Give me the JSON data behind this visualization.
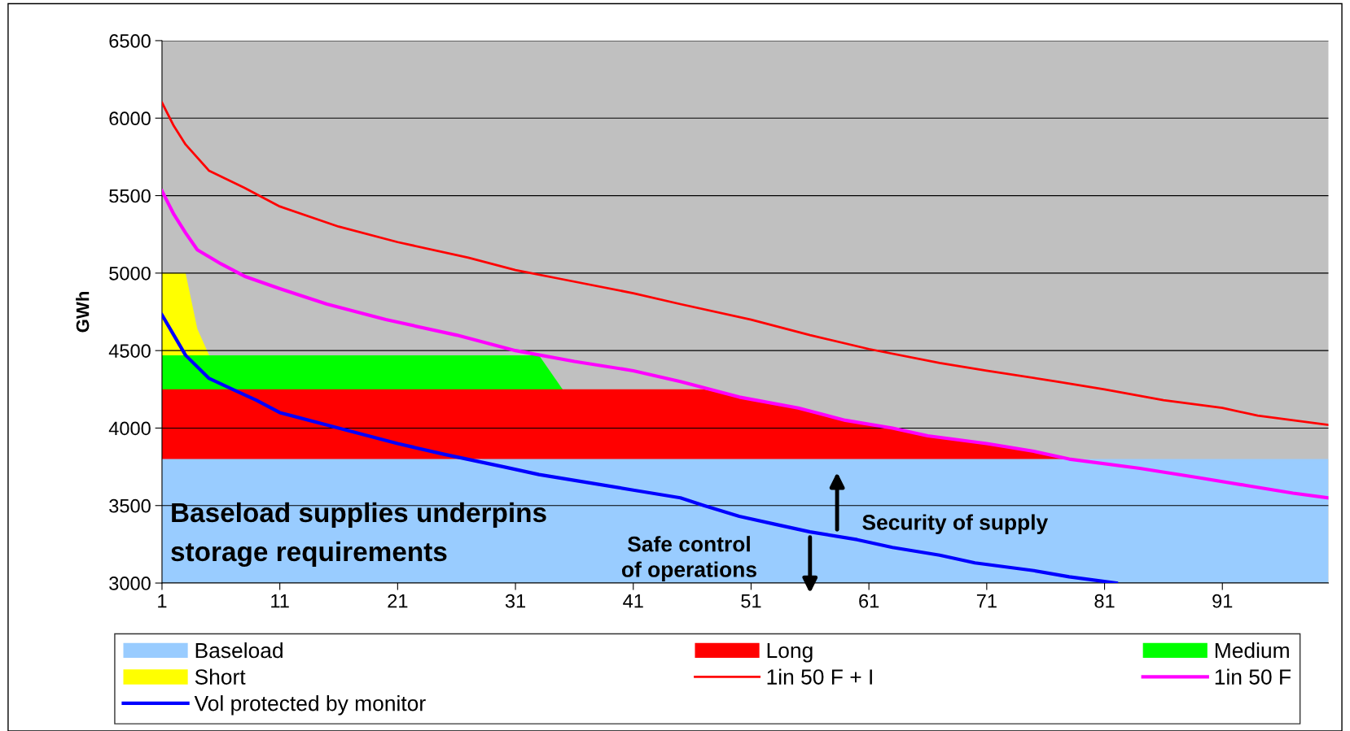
{
  "chart_data": {
    "type": "area",
    "ylabel": "GWh",
    "series": [
      {
        "name": "Baseload",
        "color": "#99ccff",
        "x": [
          1,
          100
        ],
        "values": [
          3800,
          3800
        ]
      },
      {
        "name": "Long",
        "color": "#ff0000",
        "x": [
          1,
          47,
          50,
          55,
          59,
          63,
          66,
          71,
          75,
          78
        ],
        "values": [
          4250,
          4250,
          4200,
          4130,
          4050,
          4000,
          3950,
          3900,
          3850,
          3800
        ]
      },
      {
        "name": "Medium",
        "color": "#00ff00",
        "x": [
          1,
          33,
          35
        ],
        "values": [
          4470,
          4470,
          4250
        ]
      },
      {
        "name": "Short",
        "color": "#ffff00",
        "x": [
          1,
          3,
          4,
          5
        ],
        "values": [
          5000,
          5000,
          4640,
          4470
        ]
      },
      {
        "name": "1in 50 F + I",
        "type": "line",
        "color": "#ff0000",
        "x": [
          1,
          2,
          3,
          5,
          8,
          11,
          16,
          21,
          27,
          31,
          35,
          41,
          45,
          51,
          56,
          61,
          67,
          71,
          77,
          81,
          86,
          91,
          94,
          100
        ],
        "values": [
          6100,
          5950,
          5830,
          5660,
          5550,
          5430,
          5300,
          5200,
          5100,
          5020,
          4960,
          4870,
          4800,
          4700,
          4600,
          4510,
          4420,
          4370,
          4300,
          4250,
          4180,
          4130,
          4080,
          4020
        ]
      },
      {
        "name": "1in 50 F",
        "type": "line",
        "color": "#ff00ff",
        "x": [
          1,
          2,
          3,
          4,
          6,
          8,
          11,
          15,
          20,
          26,
          31,
          36,
          41,
          45,
          50,
          55,
          59,
          63,
          66,
          71,
          75,
          78,
          84,
          89,
          93,
          97,
          100
        ],
        "values": [
          5530,
          5380,
          5260,
          5150,
          5060,
          4980,
          4900,
          4800,
          4700,
          4600,
          4500,
          4430,
          4370,
          4300,
          4200,
          4130,
          4050,
          4000,
          3950,
          3900,
          3850,
          3800,
          3740,
          3680,
          3630,
          3580,
          3550
        ]
      },
      {
        "name": "Vol protected by monitor",
        "type": "line",
        "color": "#0000ff",
        "x": [
          1,
          2,
          3,
          5,
          7,
          9,
          11,
          16,
          21,
          25,
          30,
          33,
          37,
          41,
          45,
          47,
          50,
          53,
          56,
          60,
          63,
          67,
          70,
          75,
          78,
          82
        ],
        "values": [
          4730,
          4600,
          4470,
          4320,
          4250,
          4180,
          4100,
          4000,
          3900,
          3830,
          3750,
          3700,
          3650,
          3600,
          3550,
          3500,
          3430,
          3380,
          3330,
          3280,
          3230,
          3180,
          3130,
          3080,
          3040,
          3000
        ]
      }
    ],
    "xlim": [
      1,
      100
    ],
    "xticks": [
      1,
      11,
      21,
      31,
      41,
      51,
      61,
      71,
      81,
      91
    ],
    "ylim": [
      3000,
      6500
    ],
    "yticks": [
      3000,
      3500,
      4000,
      4500,
      5000,
      5500,
      6000,
      6500
    ],
    "grid": "y",
    "legend": "bottom",
    "annotations": [
      "Baseload supplies underpins storage requirements",
      "Safe control of operations",
      "Security of supply"
    ]
  }
}
